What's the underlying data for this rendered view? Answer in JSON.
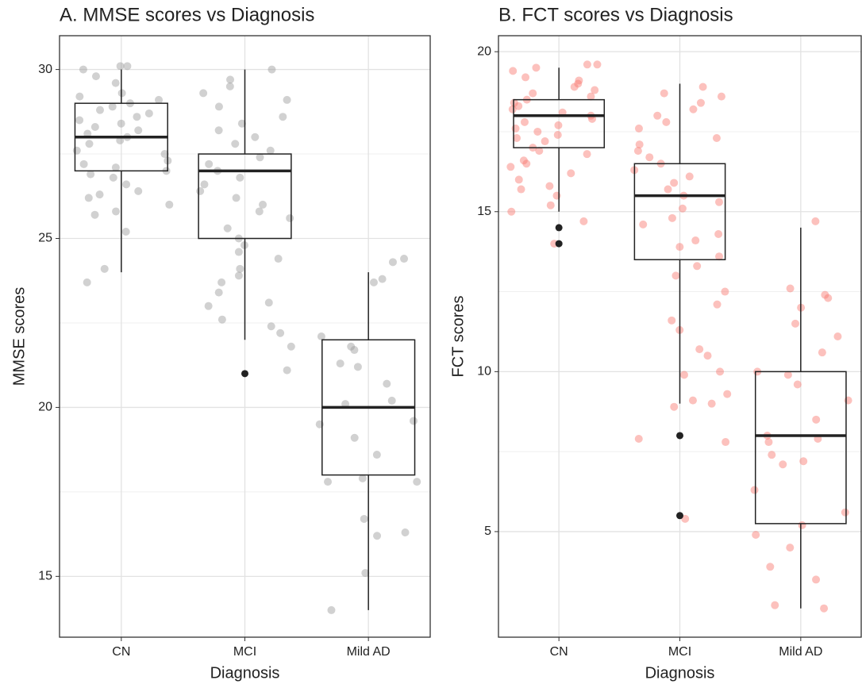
{
  "chart_data": [
    {
      "type": "box",
      "title": "A. MMSE scores vs Diagnosis",
      "x_label": "Diagnosis",
      "y_label": "MMSE scores",
      "categories": [
        "CN",
        "MCI",
        "Mild AD"
      ],
      "ylim": [
        13.2,
        31.0
      ],
      "yticks": [
        15,
        20,
        25,
        30
      ],
      "grid": true,
      "minor_grid": true,
      "point_color": "#999999",
      "box_color": "#222222",
      "boxes": [
        {
          "whisker_low": 24,
          "q1": 27,
          "median": 28,
          "q3": 29,
          "whisker_high": 30,
          "outliers": []
        },
        {
          "whisker_low": 22,
          "q1": 25,
          "median": 27,
          "q3": 27.5,
          "whisker_high": 30,
          "outliers": [
            21
          ]
        },
        {
          "whisker_low": 14,
          "q1": 18,
          "median": 20,
          "q3": 22,
          "whisker_high": 24,
          "outliers": []
        }
      ],
      "points": [
        [
          30.1,
          30.1,
          30,
          29.8,
          29.6,
          29.3,
          29.2,
          29.1,
          29,
          28.9,
          28.8,
          28.7,
          28.6,
          28.5,
          28.4,
          28.3,
          28.2,
          28.1,
          28,
          27.9,
          27.8,
          27.6,
          27.5,
          27.3,
          27.2,
          27.1,
          27,
          26.9,
          26.8,
          26.6,
          26.4,
          26.3,
          26.2,
          26,
          25.8,
          25.7,
          25.2,
          24.1,
          23.7
        ],
        [
          30,
          29.7,
          29.5,
          29.3,
          29.1,
          28.9,
          28.6,
          28.4,
          28.2,
          28,
          27.8,
          27.6,
          27.4,
          27.2,
          27,
          26.8,
          26.6,
          26.4,
          26.2,
          26,
          25.8,
          25.6,
          25.3,
          25,
          24.8,
          24.6,
          24.4,
          24.1,
          23.9,
          23.7,
          23.4,
          23.1,
          23,
          22.6,
          22.4,
          22.2,
          21.8,
          21.1
        ],
        [
          24.4,
          24.3,
          23.8,
          23.7,
          22.1,
          21.8,
          21.7,
          21.3,
          21.2,
          20.7,
          20.2,
          20.1,
          19.6,
          19.5,
          19.1,
          18.6,
          17.9,
          17.8,
          17.8,
          16.7,
          16.3,
          16.2,
          15.1,
          14
        ]
      ]
    },
    {
      "type": "box",
      "title": "B. FCT scores vs Diagnosis",
      "x_label": "Diagnosis",
      "y_label": "FCT scores",
      "categories": [
        "CN",
        "MCI",
        "Mild AD"
      ],
      "ylim": [
        1.7,
        20.5
      ],
      "yticks": [
        5,
        10,
        15,
        20
      ],
      "grid": true,
      "minor_grid": true,
      "point_color": "#f8766d",
      "box_color": "#222222",
      "boxes": [
        {
          "whisker_low": 15,
          "q1": 17,
          "median": 18,
          "q3": 18.5,
          "whisker_high": 19.5,
          "outliers": [
            14.5,
            14
          ]
        },
        {
          "whisker_low": 9,
          "q1": 13.5,
          "median": 15.5,
          "q3": 16.5,
          "whisker_high": 19,
          "outliers": [
            8,
            5.5
          ]
        },
        {
          "whisker_low": 2.6,
          "q1": 5.25,
          "median": 8,
          "q3": 10,
          "whisker_high": 14.5,
          "outliers": []
        }
      ],
      "points": [
        [
          19.6,
          19.6,
          19.5,
          19.4,
          19.2,
          19.1,
          19,
          18.9,
          18.8,
          18.7,
          18.6,
          18.5,
          18.4,
          18.3,
          18.2,
          18.1,
          18,
          17.9,
          17.8,
          17.7,
          17.6,
          17.5,
          17.4,
          17.3,
          17.2,
          17,
          16.9,
          16.8,
          16.6,
          16.5,
          16.4,
          16.2,
          16,
          15.8,
          15.7,
          15.5,
          15.2,
          15,
          14.7,
          14
        ],
        [
          18.9,
          18.7,
          18.6,
          18.4,
          18.2,
          18,
          17.8,
          17.6,
          17.3,
          17.1,
          16.9,
          16.7,
          16.5,
          16.3,
          16.1,
          15.9,
          15.7,
          15.5,
          15.3,
          15.1,
          14.8,
          14.6,
          14.3,
          14.1,
          13.9,
          13.6,
          13.3,
          13,
          12.5,
          12.1,
          11.6,
          11.3,
          10.7,
          10.5,
          10,
          9.9,
          9.3,
          9.1,
          9,
          8.9,
          7.9,
          7.8,
          5.4
        ],
        [
          14.7,
          12.6,
          12.4,
          12.3,
          12,
          11.5,
          11.1,
          10.6,
          10,
          9.9,
          9.6,
          9.1,
          8.5,
          8,
          7.9,
          7.8,
          7.4,
          7.2,
          7.1,
          6.3,
          5.6,
          5.2,
          4.9,
          4.5,
          3.9,
          3.5,
          2.7,
          2.6
        ]
      ]
    }
  ]
}
